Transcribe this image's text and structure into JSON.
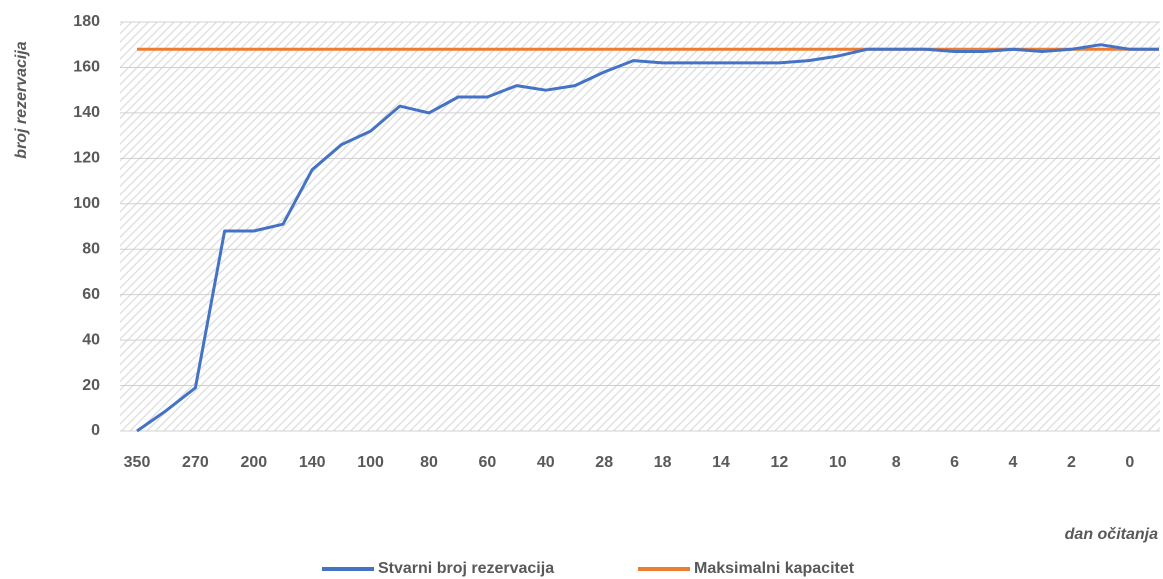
{
  "chart_data": {
    "type": "line",
    "y_label": "broj rezervacija",
    "x_label": "dan očitanja",
    "categories": [
      "350",
      null,
      "270",
      null,
      "200",
      null,
      "140",
      null,
      "100",
      null,
      "80",
      null,
      "60",
      null,
      "40",
      null,
      "28",
      null,
      "18",
      null,
      "14",
      null,
      "12",
      null,
      "10",
      null,
      "8",
      null,
      "6",
      null,
      "4",
      null,
      "2",
      null,
      "0",
      null
    ],
    "series": [
      {
        "name": "Stvarni broj rezervacija",
        "color": "#4472c4",
        "values": [
          0,
          9,
          19,
          88,
          88,
          91,
          115,
          126,
          132,
          143,
          140,
          147,
          147,
          152,
          150,
          152,
          158,
          163,
          162,
          162,
          162,
          162,
          162,
          163,
          165,
          168,
          168,
          168,
          167,
          167,
          168,
          167,
          168,
          170,
          168,
          168
        ]
      },
      {
        "name": "Maksimalni kapacitet",
        "color": "#ed7d31",
        "values": [
          168,
          168,
          168,
          168,
          168,
          168,
          168,
          168,
          168,
          168,
          168,
          168,
          168,
          168,
          168,
          168,
          168,
          168,
          168,
          168,
          168,
          168,
          168,
          168,
          168,
          168,
          168,
          168,
          168,
          168,
          168,
          168,
          168,
          168,
          168,
          168
        ]
      }
    ],
    "ylim": [
      0,
      180
    ],
    "yticks": [
      0,
      20,
      40,
      60,
      80,
      100,
      120,
      140,
      160,
      180
    ],
    "grid": true,
    "legend": "bottom"
  }
}
